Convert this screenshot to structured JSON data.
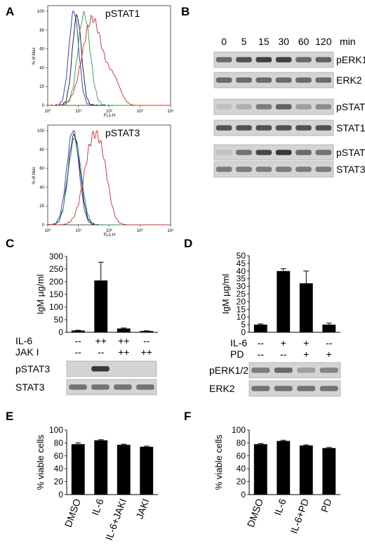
{
  "panels": {
    "A": "A",
    "B": "B",
    "C": "C",
    "D": "D",
    "E": "E",
    "F": "F"
  },
  "flow": {
    "top": {
      "label": "pSTAT1",
      "y_axis": "% of Max",
      "x_axis": "FL1-H",
      "y_ticks": [
        "0",
        "20",
        "40",
        "60",
        "80",
        "100"
      ],
      "x_ticks": [
        "10⁰",
        "10¹",
        "10²",
        "10³",
        "10⁴"
      ]
    },
    "bottom": {
      "label": "pSTAT3",
      "y_axis": "% of Max",
      "x_axis": "FL1-H",
      "y_ticks": [
        "0",
        "20",
        "40",
        "60",
        "80",
        "100"
      ],
      "x_ticks": [
        "10⁰",
        "10¹",
        "10²",
        "10³",
        "10⁴"
      ]
    },
    "colors": {
      "blue": "#1f2fd6",
      "black": "#111111",
      "green": "#2f9a45",
      "red": "#d62a2a"
    }
  },
  "blotB": {
    "timepoints": [
      "0",
      "5",
      "15",
      "30",
      "60",
      "120"
    ],
    "unit": "min",
    "rows": [
      "pERK1/2",
      "ERK2",
      "pSTAT1",
      "STAT1",
      "pSTAT3",
      "STAT3"
    ]
  },
  "chart_data": [
    {
      "panel": "C",
      "type": "bar",
      "ylabel": "IgM µg/ml",
      "ylim": [
        0,
        300
      ],
      "yticks": [
        0,
        50,
        100,
        150,
        200,
        250,
        300
      ],
      "values": [
        7,
        205,
        15,
        5
      ],
      "errors": [
        1,
        72,
        2,
        1
      ],
      "conditions": {
        "IL-6": [
          "--",
          "++",
          "++",
          "--"
        ],
        "JAK I": [
          "--",
          "--",
          "++",
          "++"
        ]
      },
      "blots": [
        "pSTAT3",
        "STAT3"
      ]
    },
    {
      "panel": "D",
      "type": "bar",
      "ylabel": "IgM µg/ml",
      "ylim": [
        0,
        50
      ],
      "yticks": [
        0,
        5,
        10,
        15,
        20,
        25,
        30,
        35,
        40,
        45,
        50
      ],
      "values": [
        5,
        40,
        32,
        5
      ],
      "errors": [
        0.5,
        1.5,
        8,
        1
      ],
      "conditions": {
        "IL-6": [
          "--",
          "+",
          "+",
          "--"
        ],
        "PD": [
          "--",
          "--",
          "+",
          "+"
        ]
      },
      "blots": [
        "pERK1/2",
        "ERK2"
      ]
    },
    {
      "panel": "E",
      "type": "bar",
      "ylabel": "% viable cells",
      "ylim": [
        0,
        100
      ],
      "yticks": [
        0,
        20,
        40,
        60,
        80,
        100
      ],
      "categories": [
        "DMSO",
        "IL-6",
        "IL-6+JAKI",
        "JAKI"
      ],
      "values": [
        78,
        84,
        77,
        74
      ],
      "errors": [
        2,
        1,
        1,
        1
      ]
    },
    {
      "panel": "F",
      "type": "bar",
      "ylabel": "% viable cells",
      "ylim": [
        0,
        100
      ],
      "yticks": [
        0,
        20,
        40,
        60,
        80,
        100
      ],
      "categories": [
        "DMSO",
        "IL-6",
        "IL-6+PD",
        "PD"
      ],
      "values": [
        78,
        83,
        76,
        72
      ],
      "errors": [
        1,
        1,
        1,
        1
      ]
    }
  ]
}
